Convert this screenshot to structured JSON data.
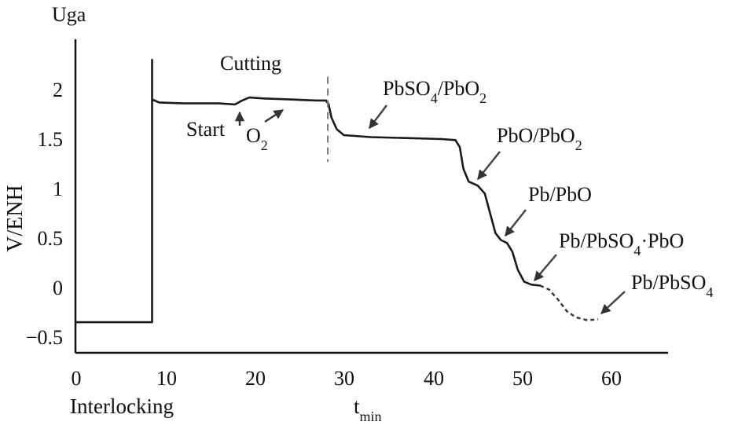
{
  "chart_data": {
    "type": "line",
    "title": "",
    "corner_label": "Uga",
    "xlabel": "t",
    "xlabel_sub": "min",
    "xlabel_extra": "Interlocking",
    "ylabel": "V/ENH",
    "xlim": [
      0,
      66
    ],
    "ylim": [
      -0.62,
      2.45
    ],
    "x_ticks": [
      0,
      10,
      20,
      30,
      40,
      50,
      60
    ],
    "x_tick_labels": [
      "0",
      "10",
      "20",
      "30",
      "40",
      "50",
      "60"
    ],
    "y_ticks": [
      2,
      1.5,
      1,
      0.5,
      0,
      -0.5
    ],
    "y_tick_labels": [
      "2",
      "1.5",
      "1",
      "0.5",
      "0",
      "−0.5"
    ],
    "grid": false,
    "legend": null,
    "series": [
      {
        "name": "Potential (solid)",
        "style": "solid",
        "points": [
          [
            0,
            -0.35
          ],
          [
            8.5,
            -0.35
          ],
          [
            8.5,
            2.3
          ],
          [
            8.5,
            1.9
          ],
          [
            9.3,
            1.87
          ],
          [
            12,
            1.86
          ],
          [
            16,
            1.86
          ],
          [
            17.8,
            1.85
          ],
          [
            18.6,
            1.89
          ],
          [
            19.4,
            1.92
          ],
          [
            21,
            1.91
          ],
          [
            24,
            1.9
          ],
          [
            27,
            1.89
          ],
          [
            28,
            1.89
          ],
          [
            28.3,
            1.85
          ],
          [
            28.6,
            1.72
          ],
          [
            29.2,
            1.6
          ],
          [
            30,
            1.54
          ],
          [
            33,
            1.52
          ],
          [
            37,
            1.51
          ],
          [
            41,
            1.5
          ],
          [
            42.5,
            1.49
          ],
          [
            43,
            1.42
          ],
          [
            43.4,
            1.2
          ],
          [
            44,
            1.07
          ],
          [
            45,
            1.03
          ],
          [
            45.8,
            0.95
          ],
          [
            46.4,
            0.75
          ],
          [
            47,
            0.55
          ],
          [
            47.6,
            0.48
          ],
          [
            48.3,
            0.45
          ],
          [
            48.9,
            0.36
          ],
          [
            49.5,
            0.18
          ],
          [
            50.2,
            0.06
          ],
          [
            51,
            0.03
          ],
          [
            52,
            0.02
          ]
        ]
      },
      {
        "name": "Potential (dashed tail)",
        "style": "dashed",
        "points": [
          [
            52,
            0.02
          ],
          [
            53,
            -0.02
          ],
          [
            54,
            -0.12
          ],
          [
            55,
            -0.24
          ],
          [
            56,
            -0.3
          ],
          [
            57.3,
            -0.33
          ],
          [
            58.5,
            -0.32
          ]
        ]
      },
      {
        "name": "Cutting marker",
        "style": "dashed-vertical",
        "points": [
          [
            28.2,
            2.13
          ],
          [
            28.2,
            1.27
          ]
        ]
      }
    ],
    "annotations": [
      {
        "text": "Cutting",
        "x": 20.5,
        "y": 2.2,
        "arrow": false
      },
      {
        "text": "Start",
        "x": 13,
        "y": 1.6,
        "arrow_to": [
          18.5,
          1.85
        ]
      },
      {
        "text": "O",
        "sub": "2",
        "x": 19.5,
        "y": 1.55,
        "arrow_to": [
          22.5,
          1.75
        ]
      },
      {
        "text": "PbSO",
        "sub": "4",
        "tail": "/PbO",
        "sub2": "2",
        "x": 34.5,
        "y": 1.95,
        "arrow_to": [
          32.5,
          1.53
        ]
      },
      {
        "text": "PbO/PbO",
        "sub": "2",
        "x": 47.5,
        "y": 1.48,
        "arrow_to": [
          44.6,
          1.03
        ]
      },
      {
        "text": "Pb/PbO",
        "x": 49.5,
        "y": 0.98,
        "arrow_to": [
          48.3,
          0.47
        ]
      },
      {
        "text": "Pb/PbSO",
        "sub": "4",
        "tail": "·PbO",
        "x": 54.5,
        "y": 0.48,
        "arrow_to": [
          51.3,
          0.04
        ]
      },
      {
        "text": "Pb/PbSO",
        "sub": "4",
        "x": 61.5,
        "y": 0.02,
        "arrow_to": [
          58.5,
          -0.3
        ]
      }
    ]
  },
  "labels": {
    "corner": "Uga",
    "ylabel": "V/ENH",
    "xlabel_main": "t",
    "xlabel_sub": "min",
    "x_extra": "Interlocking",
    "cutting": "Cutting",
    "start": "Start",
    "o2": "O",
    "o2_sub": "2",
    "a1_main": "PbSO",
    "a1_sub": "4",
    "a1_tail": "/PbO",
    "a1_sub2": "2",
    "a2_main": "PbO/PbO",
    "a2_sub": "2",
    "a3_main": "Pb/PbO",
    "a4_main": "Pb/PbSO",
    "a4_sub": "4",
    "a4_tail": "·PbO",
    "a5_main": "Pb/PbSO",
    "a5_sub": "4"
  }
}
